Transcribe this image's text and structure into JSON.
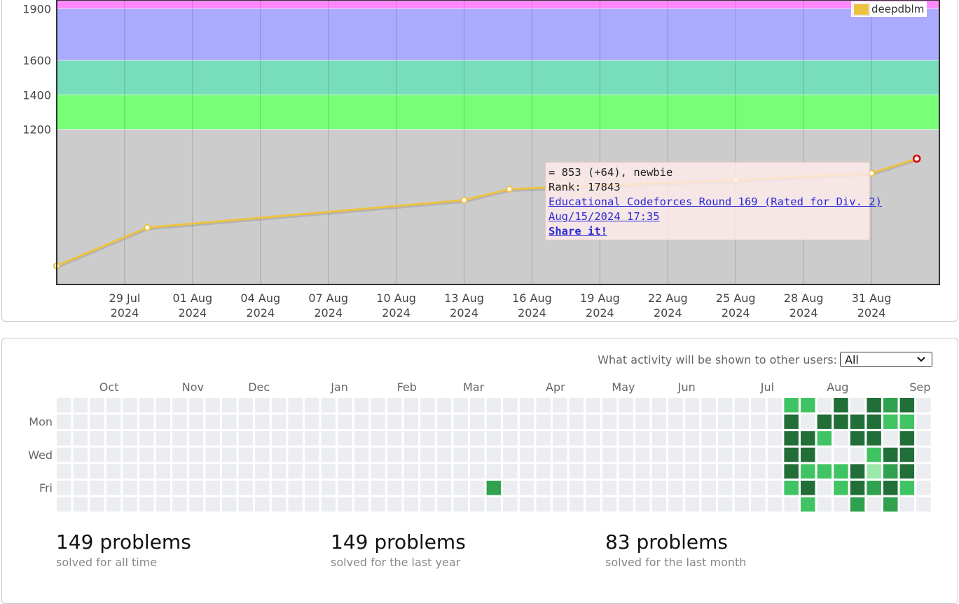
{
  "chart_data": {
    "type": "line",
    "title": "",
    "xlabel": "",
    "ylabel": "",
    "xlim": [
      "2024-07-26",
      "2024-09-03"
    ],
    "ylim": [
      300,
      1950
    ],
    "y_ticks": [
      1200,
      1400,
      1600,
      1900
    ],
    "x_ticks": [
      {
        "date": "2024-07-29",
        "line1": "29 Jul",
        "line2": "2024"
      },
      {
        "date": "2024-08-01",
        "line1": "01 Aug",
        "line2": "2024"
      },
      {
        "date": "2024-08-04",
        "line1": "04 Aug",
        "line2": "2024"
      },
      {
        "date": "2024-08-07",
        "line1": "07 Aug",
        "line2": "2024"
      },
      {
        "date": "2024-08-10",
        "line1": "10 Aug",
        "line2": "2024"
      },
      {
        "date": "2024-08-13",
        "line1": "13 Aug",
        "line2": "2024"
      },
      {
        "date": "2024-08-16",
        "line1": "16 Aug",
        "line2": "2024"
      },
      {
        "date": "2024-08-19",
        "line1": "19 Aug",
        "line2": "2024"
      },
      {
        "date": "2024-08-22",
        "line1": "22 Aug",
        "line2": "2024"
      },
      {
        "date": "2024-08-25",
        "line1": "25 Aug",
        "line2": "2024"
      },
      {
        "date": "2024-08-28",
        "line1": "28 Aug",
        "line2": "2024"
      },
      {
        "date": "2024-08-31",
        "line1": "31 Aug",
        "line2": "2024"
      }
    ],
    "bands": [
      {
        "from": 0,
        "to": 1200,
        "color": "#cccccc"
      },
      {
        "from": 1200,
        "to": 1400,
        "color": "#77ff77"
      },
      {
        "from": 1400,
        "to": 1600,
        "color": "#77ddbb"
      },
      {
        "from": 1600,
        "to": 1900,
        "color": "#aaaaff"
      },
      {
        "from": 1900,
        "to": 2100,
        "color": "#ff88ff"
      }
    ],
    "grid": true,
    "legend_position": "top-right",
    "series": [
      {
        "name": "deepdblm",
        "color": "#edc240",
        "points": [
          {
            "x": "2024-07-26",
            "y": 408
          },
          {
            "x": "2024-07-30",
            "y": 630
          },
          {
            "x": "2024-08-13",
            "y": 789
          },
          {
            "x": "2024-08-15",
            "y": 853
          },
          {
            "x": "2024-08-25",
            "y": 905
          },
          {
            "x": "2024-08-31",
            "y": 945
          },
          {
            "x": "2024-09-02",
            "y": 1030
          }
        ],
        "highlight_index": 6
      }
    ]
  },
  "tooltip": {
    "rating_line": "= 853 (+64), newbie",
    "rank_line": "Rank: 17843",
    "contest_link": "Educational Codeforces Round 169 (Rated for Div. 2)",
    "date_link": "Aug/15/2024 17:35",
    "share_link": "Share it!"
  },
  "activity": {
    "visibility_label": "What activity will be shown to other users:",
    "visibility_value": "All",
    "months": [
      {
        "label": "Oct",
        "week": 3
      },
      {
        "label": "Nov",
        "week": 8
      },
      {
        "label": "Dec",
        "week": 12
      },
      {
        "label": "Jan",
        "week": 17
      },
      {
        "label": "Feb",
        "week": 21
      },
      {
        "label": "Mar",
        "week": 25
      },
      {
        "label": "Apr",
        "week": 30
      },
      {
        "label": "May",
        "week": 34
      },
      {
        "label": "Jun",
        "week": 38
      },
      {
        "label": "Jul",
        "week": 43
      },
      {
        "label": "Aug",
        "week": 47
      },
      {
        "label": "Sep",
        "week": 52
      }
    ],
    "day_labels": [
      {
        "label": "Mon",
        "row": 1
      },
      {
        "label": "Wed",
        "row": 3
      },
      {
        "label": "Fri",
        "row": 5
      }
    ],
    "weeks": 53,
    "colors": [
      "#ebedf0",
      "#9be9a8",
      "#40c463",
      "#30a14e",
      "#216e39"
    ],
    "active_cells": [
      {
        "week": 26,
        "day": 5,
        "level": 3
      },
      {
        "week": 44,
        "day": 0,
        "level": 2
      },
      {
        "week": 45,
        "day": 0,
        "level": 2
      },
      {
        "week": 47,
        "day": 0,
        "level": 4
      },
      {
        "week": 49,
        "day": 0,
        "level": 4
      },
      {
        "week": 50,
        "day": 0,
        "level": 3
      },
      {
        "week": 51,
        "day": 0,
        "level": 4
      },
      {
        "week": 44,
        "day": 1,
        "level": 4
      },
      {
        "week": 46,
        "day": 1,
        "level": 4
      },
      {
        "week": 47,
        "day": 1,
        "level": 4
      },
      {
        "week": 48,
        "day": 1,
        "level": 4
      },
      {
        "week": 49,
        "day": 1,
        "level": 4
      },
      {
        "week": 50,
        "day": 1,
        "level": 2
      },
      {
        "week": 51,
        "day": 1,
        "level": 2
      },
      {
        "week": 44,
        "day": 2,
        "level": 4
      },
      {
        "week": 45,
        "day": 2,
        "level": 4
      },
      {
        "week": 46,
        "day": 2,
        "level": 2
      },
      {
        "week": 48,
        "day": 2,
        "level": 4
      },
      {
        "week": 49,
        "day": 2,
        "level": 4
      },
      {
        "week": 51,
        "day": 2,
        "level": 4
      },
      {
        "week": 44,
        "day": 3,
        "level": 4
      },
      {
        "week": 45,
        "day": 3,
        "level": 4
      },
      {
        "week": 49,
        "day": 3,
        "level": 2
      },
      {
        "week": 50,
        "day": 3,
        "level": 4
      },
      {
        "week": 51,
        "day": 3,
        "level": 4
      },
      {
        "week": 44,
        "day": 4,
        "level": 4
      },
      {
        "week": 45,
        "day": 4,
        "level": 2
      },
      {
        "week": 46,
        "day": 4,
        "level": 2
      },
      {
        "week": 47,
        "day": 4,
        "level": 2
      },
      {
        "week": 48,
        "day": 4,
        "level": 4
      },
      {
        "week": 49,
        "day": 4,
        "level": 1
      },
      {
        "week": 50,
        "day": 4,
        "level": 3
      },
      {
        "week": 51,
        "day": 4,
        "level": 4
      },
      {
        "week": 44,
        "day": 5,
        "level": 2
      },
      {
        "week": 45,
        "day": 5,
        "level": 4
      },
      {
        "week": 47,
        "day": 5,
        "level": 2
      },
      {
        "week": 48,
        "day": 5,
        "level": 4
      },
      {
        "week": 49,
        "day": 5,
        "level": 3
      },
      {
        "week": 50,
        "day": 5,
        "level": 4
      },
      {
        "week": 51,
        "day": 5,
        "level": 2
      },
      {
        "week": 45,
        "day": 6,
        "level": 2
      },
      {
        "week": 48,
        "day": 6,
        "level": 3
      },
      {
        "week": 50,
        "day": 6,
        "level": 3
      }
    ],
    "stats": [
      {
        "count": "149 problems",
        "desc": "solved for all time"
      },
      {
        "count": "149 problems",
        "desc": "solved for the last year"
      },
      {
        "count": "83 problems",
        "desc": "solved for the last month"
      }
    ]
  }
}
